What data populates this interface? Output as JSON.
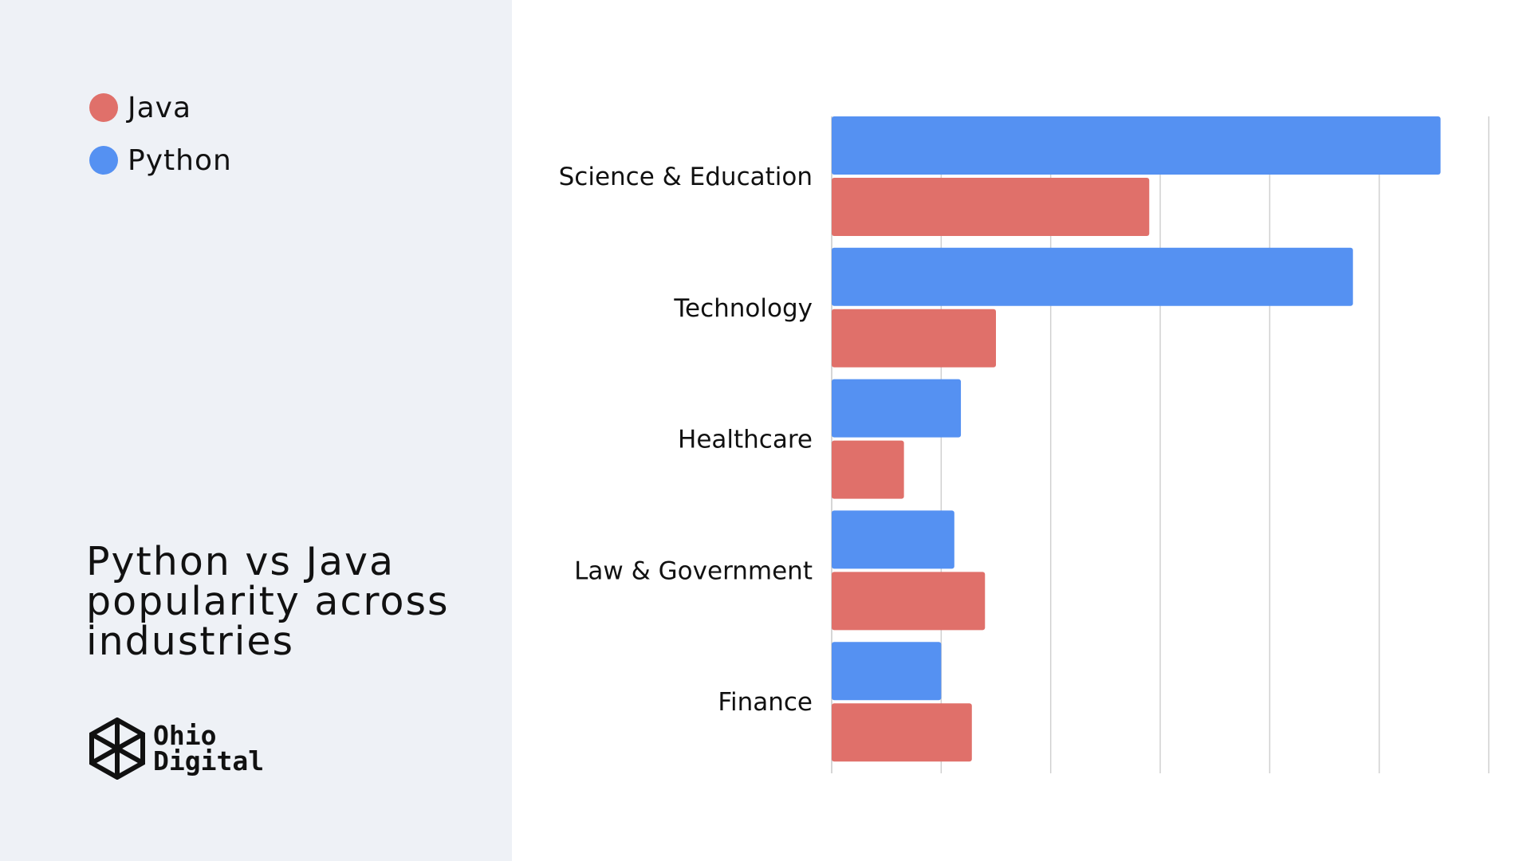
{
  "title": "Python vs Java popularity across industries",
  "legend": {
    "java": "Java",
    "python": "Python"
  },
  "logo": {
    "line1": "Ohio",
    "line2": "Digital"
  },
  "colors": {
    "java": "#E0706A",
    "python": "#5591F2",
    "grid": "#D0D0D0",
    "panel": "#EEF1F6"
  },
  "chart_data": {
    "type": "bar",
    "orientation": "horizontal",
    "categories": [
      "Science & Education",
      "Technology",
      "Healthcare",
      "Law & Government",
      "Finance"
    ],
    "series": [
      {
        "name": "Python",
        "values": [
          27.8,
          23.8,
          5.9,
          5.6,
          5.0
        ]
      },
      {
        "name": "Java",
        "values": [
          14.5,
          7.5,
          3.3,
          7.0,
          6.4
        ]
      }
    ],
    "xlim": [
      0,
      30
    ],
    "grid": true,
    "legend_position": "top-left"
  }
}
